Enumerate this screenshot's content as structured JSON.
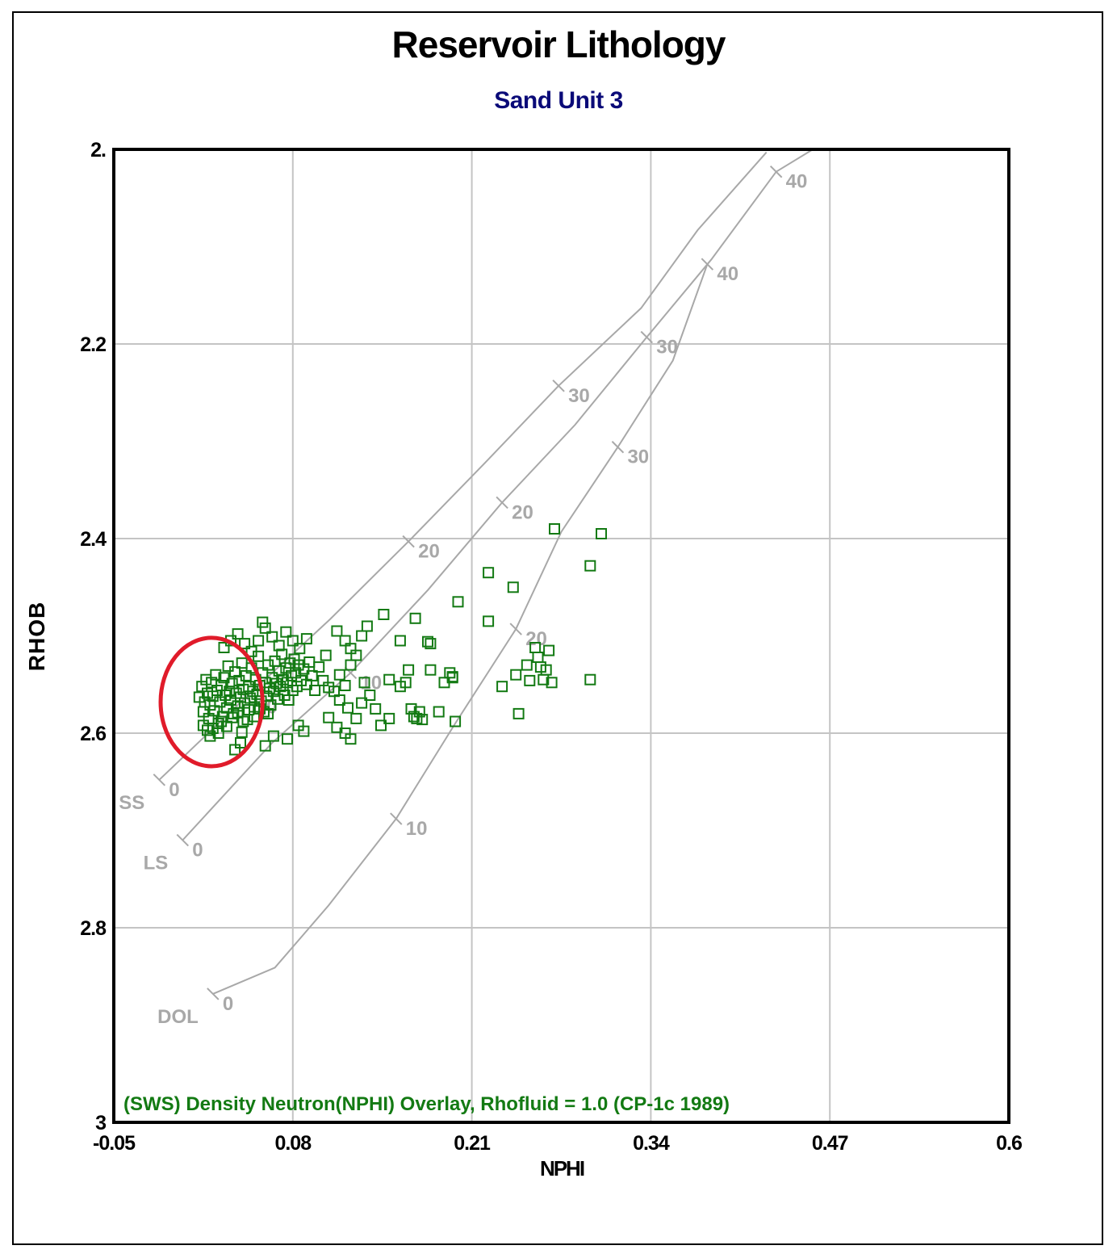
{
  "chart_data": {
    "type": "scatter",
    "title": "Reservoir Lithology",
    "subtitle": "Sand Unit 3",
    "xlabel": "NPHI",
    "ylabel": "RHOB",
    "xlim": [
      -0.05,
      0.6
    ],
    "ylim": [
      3.0,
      2.0
    ],
    "y_inverted": true,
    "x_ticks": [
      "-0.05",
      "0.08",
      "0.21",
      "0.34",
      "0.47",
      "0.6"
    ],
    "y_ticks": [
      "2.",
      "2.2",
      "2.4",
      "2.6",
      "2.8",
      "3"
    ],
    "grid": true,
    "annotation": "(SWS) Density Neutron(NPHI) Overlay, Rhofluid = 1.0 (CP-1c 1989)",
    "colors": {
      "points": "#137a13",
      "curves": "#a8a8a8",
      "highlight": "#e01b2a",
      "subtitle": "#0a0a78"
    },
    "lithology_curves": [
      {
        "name": "SS",
        "points": [
          [
            -0.017,
            2.648
          ],
          [
            0.046,
            2.563
          ],
          [
            0.107,
            2.483
          ],
          [
            0.164,
            2.403
          ],
          [
            0.219,
            2.323
          ],
          [
            0.273,
            2.243
          ],
          [
            0.333,
            2.163
          ],
          [
            0.374,
            2.083
          ],
          [
            0.424,
            2.003
          ]
        ],
        "ticks": [
          [
            "0",
            -0.017,
            2.648
          ],
          [
            "10",
            0.046,
            2.563
          ],
          [
            "20",
            0.164,
            2.403
          ],
          [
            "30",
            0.273,
            2.243
          ]
        ]
      },
      {
        "name": "LS",
        "points": [
          [
            0.0,
            2.71
          ],
          [
            0.065,
            2.61
          ],
          [
            0.122,
            2.538
          ],
          [
            0.178,
            2.453
          ],
          [
            0.232,
            2.363
          ],
          [
            0.285,
            2.283
          ],
          [
            0.337,
            2.193
          ],
          [
            0.384,
            2.113
          ],
          [
            0.431,
            2.023
          ],
          [
            0.489,
            1.973
          ]
        ],
        "ticks": [
          [
            "0",
            0.0,
            2.71
          ],
          [
            "10",
            0.122,
            2.538
          ],
          [
            "20",
            0.232,
            2.363
          ],
          [
            "30",
            0.337,
            2.193
          ],
          [
            "40",
            0.431,
            2.023
          ]
        ]
      },
      {
        "name": "DOL",
        "points": [
          [
            0.022,
            2.868
          ],
          [
            0.067,
            2.841
          ],
          [
            0.106,
            2.777
          ],
          [
            0.155,
            2.688
          ],
          [
            0.198,
            2.59
          ],
          [
            0.242,
            2.493
          ],
          [
            0.275,
            2.393
          ],
          [
            0.316,
            2.306
          ],
          [
            0.356,
            2.217
          ],
          [
            0.381,
            2.118
          ]
        ],
        "ticks": [
          [
            "0",
            0.022,
            2.868
          ],
          [
            "10",
            0.155,
            2.688
          ],
          [
            "20",
            0.242,
            2.493
          ],
          [
            "30",
            0.316,
            2.306
          ],
          [
            "40",
            0.381,
            2.118
          ]
        ]
      }
    ],
    "series": [
      {
        "marker": "open-square",
        "points": [
          [
            0.012,
            2.563
          ],
          [
            0.014,
            2.552
          ],
          [
            0.015,
            2.578
          ],
          [
            0.016,
            2.568
          ],
          [
            0.017,
            2.545
          ],
          [
            0.018,
            2.559
          ],
          [
            0.019,
            2.585
          ],
          [
            0.02,
            2.571
          ],
          [
            0.021,
            2.548
          ],
          [
            0.022,
            2.562
          ],
          [
            0.023,
            2.577
          ],
          [
            0.024,
            2.54
          ],
          [
            0.025,
            2.556
          ],
          [
            0.026,
            2.59
          ],
          [
            0.027,
            2.568
          ],
          [
            0.028,
            2.551
          ],
          [
            0.029,
            2.583
          ],
          [
            0.03,
            2.543
          ],
          [
            0.031,
            2.561
          ],
          [
            0.032,
            2.574
          ],
          [
            0.033,
            2.531
          ],
          [
            0.034,
            2.557
          ],
          [
            0.035,
            2.566
          ],
          [
            0.036,
            2.549
          ],
          [
            0.037,
            2.58
          ],
          [
            0.038,
            2.537
          ],
          [
            0.039,
            2.559
          ],
          [
            0.04,
            2.572
          ],
          [
            0.041,
            2.546
          ],
          [
            0.042,
            2.563
          ],
          [
            0.043,
            2.528
          ],
          [
            0.044,
            2.555
          ],
          [
            0.045,
            2.569
          ],
          [
            0.046,
            2.541
          ],
          [
            0.047,
            2.586
          ],
          [
            0.048,
            2.552
          ],
          [
            0.049,
            2.564
          ],
          [
            0.05,
            2.533
          ],
          [
            0.051,
            2.557
          ],
          [
            0.052,
            2.573
          ],
          [
            0.053,
            2.545
          ],
          [
            0.054,
            2.56
          ],
          [
            0.055,
            2.521
          ],
          [
            0.056,
            2.551
          ],
          [
            0.057,
            2.567
          ],
          [
            0.058,
            2.538
          ],
          [
            0.059,
            2.578
          ],
          [
            0.06,
            2.548
          ],
          [
            0.061,
            2.562
          ],
          [
            0.062,
            2.53
          ],
          [
            0.063,
            2.554
          ],
          [
            0.064,
            2.571
          ],
          [
            0.065,
            2.543
          ],
          [
            0.066,
            2.557
          ],
          [
            0.067,
            2.526
          ],
          [
            0.068,
            2.549
          ],
          [
            0.069,
            2.565
          ],
          [
            0.07,
            2.536
          ],
          [
            0.071,
            2.552
          ],
          [
            0.072,
            2.519
          ],
          [
            0.073,
            2.545
          ],
          [
            0.074,
            2.561
          ],
          [
            0.075,
            2.533
          ],
          [
            0.076,
            2.548
          ],
          [
            0.077,
            2.566
          ],
          [
            0.078,
            2.528
          ],
          [
            0.079,
            2.541
          ],
          [
            0.08,
            2.556
          ],
          [
            0.081,
            2.524
          ],
          [
            0.082,
            2.538
          ],
          [
            0.083,
            2.552
          ],
          [
            0.084,
            2.53
          ],
          [
            0.086,
            2.546
          ],
          [
            0.088,
            2.534
          ],
          [
            0.09,
            2.55
          ],
          [
            0.092,
            2.527
          ],
          [
            0.094,
            2.541
          ],
          [
            0.096,
            2.556
          ],
          [
            0.099,
            2.532
          ],
          [
            0.102,
            2.546
          ],
          [
            0.104,
            2.52
          ],
          [
            0.106,
            2.553
          ],
          [
            0.015,
            2.592
          ],
          [
            0.018,
            2.597
          ],
          [
            0.02,
            2.603
          ],
          [
            0.022,
            2.595
          ],
          [
            0.026,
            2.6
          ],
          [
            0.028,
            2.588
          ],
          [
            0.032,
            2.593
          ],
          [
            0.036,
            2.584
          ],
          [
            0.04,
            2.579
          ],
          [
            0.044,
            2.588
          ],
          [
            0.048,
            2.576
          ],
          [
            0.052,
            2.583
          ],
          [
            0.056,
            2.575
          ],
          [
            0.062,
            2.58
          ],
          [
            0.03,
            2.512
          ],
          [
            0.035,
            2.505
          ],
          [
            0.04,
            2.498
          ],
          [
            0.045,
            2.508
          ],
          [
            0.05,
            2.516
          ],
          [
            0.055,
            2.505
          ],
          [
            0.058,
            2.486
          ],
          [
            0.06,
            2.492
          ],
          [
            0.065,
            2.501
          ],
          [
            0.07,
            2.51
          ],
          [
            0.075,
            2.496
          ],
          [
            0.08,
            2.505
          ],
          [
            0.085,
            2.513
          ],
          [
            0.09,
            2.503
          ],
          [
            0.038,
            2.617
          ],
          [
            0.042,
            2.61
          ],
          [
            0.043,
            2.599
          ],
          [
            0.06,
            2.613
          ],
          [
            0.066,
            2.603
          ],
          [
            0.076,
            2.606
          ],
          [
            0.084,
            2.592
          ],
          [
            0.088,
            2.598
          ],
          [
            0.106,
            2.584
          ],
          [
            0.118,
            2.6
          ],
          [
            0.122,
            2.606
          ],
          [
            0.112,
            2.594
          ],
          [
            0.11,
            2.557
          ],
          [
            0.114,
            2.566
          ],
          [
            0.118,
            2.551
          ],
          [
            0.12,
            2.574
          ],
          [
            0.126,
            2.585
          ],
          [
            0.13,
            2.569
          ],
          [
            0.132,
            2.548
          ],
          [
            0.136,
            2.561
          ],
          [
            0.14,
            2.575
          ],
          [
            0.144,
            2.592
          ],
          [
            0.15,
            2.585
          ],
          [
            0.114,
            2.54
          ],
          [
            0.122,
            2.53
          ],
          [
            0.126,
            2.52
          ],
          [
            0.112,
            2.495
          ],
          [
            0.118,
            2.505
          ],
          [
            0.122,
            2.513
          ],
          [
            0.13,
            2.5
          ],
          [
            0.134,
            2.49
          ],
          [
            0.146,
            2.478
          ],
          [
            0.158,
            2.505
          ],
          [
            0.169,
            2.482
          ],
          [
            0.178,
            2.506
          ],
          [
            0.18,
            2.508
          ],
          [
            0.196,
            2.542
          ],
          [
            0.2,
            2.465
          ],
          [
            0.222,
            2.435
          ],
          [
            0.222,
            2.485
          ],
          [
            0.24,
            2.45
          ],
          [
            0.15,
            2.545
          ],
          [
            0.158,
            2.552
          ],
          [
            0.162,
            2.548
          ],
          [
            0.164,
            2.535
          ],
          [
            0.166,
            2.575
          ],
          [
            0.168,
            2.583
          ],
          [
            0.17,
            2.585
          ],
          [
            0.172,
            2.578
          ],
          [
            0.174,
            2.586
          ],
          [
            0.18,
            2.535
          ],
          [
            0.186,
            2.578
          ],
          [
            0.19,
            2.548
          ],
          [
            0.194,
            2.538
          ],
          [
            0.196,
            2.543
          ],
          [
            0.198,
            2.588
          ],
          [
            0.232,
            2.552
          ],
          [
            0.242,
            2.54
          ],
          [
            0.244,
            2.58
          ],
          [
            0.256,
            2.512
          ],
          [
            0.258,
            2.522
          ],
          [
            0.26,
            2.532
          ],
          [
            0.262,
            2.545
          ],
          [
            0.264,
            2.535
          ],
          [
            0.266,
            2.515
          ],
          [
            0.268,
            2.548
          ],
          [
            0.252,
            2.546
          ],
          [
            0.25,
            2.53
          ],
          [
            0.27,
            2.39
          ],
          [
            0.296,
            2.428
          ],
          [
            0.296,
            2.545
          ],
          [
            0.304,
            2.395
          ]
        ]
      }
    ],
    "highlight_ellipse": {
      "center": [
        0.021,
        2.568
      ],
      "rx_nphi": 0.037,
      "ry_rhob": 0.066
    }
  }
}
